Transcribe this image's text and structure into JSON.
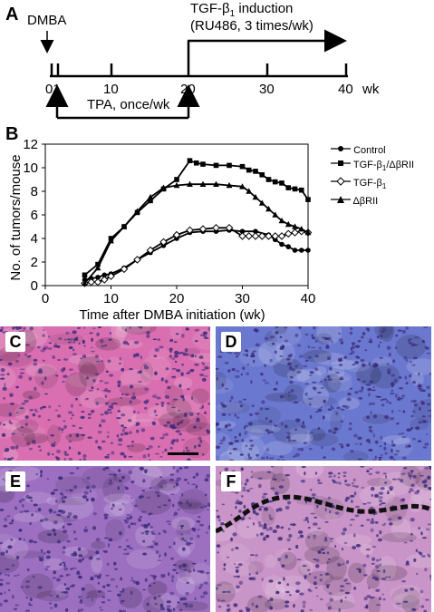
{
  "panels": {
    "A": "A",
    "B": "B",
    "C": "C",
    "D": "D",
    "E": "E",
    "F": "F"
  },
  "timeline": {
    "dmba_label": "DMBA",
    "tgf_label_prefix": "TGF-β",
    "tgf_label_sub": "1",
    "tgf_label_suffix": " induction",
    "tgf_detail": "(RU486, 3 times/wk)",
    "tpa_label": "TPA, once/wk",
    "ticks": [
      "01",
      "10",
      "20",
      "30",
      "40"
    ],
    "unit": "wk"
  },
  "chart_data": {
    "type": "line",
    "title": "",
    "xlabel": "Time after DMBA initiation (wk)",
    "ylabel": "No. of tumors/mouse",
    "xlim": [
      0,
      40
    ],
    "ylim": [
      0,
      12
    ],
    "xticks": [
      0,
      10,
      20,
      30,
      40
    ],
    "yticks": [
      0,
      2,
      4,
      6,
      8,
      10,
      12
    ],
    "grid": false,
    "legend_position": "right",
    "series": [
      {
        "name": "Control",
        "marker": "circle-filled",
        "x": [
          6,
          7,
          8,
          9,
          10,
          12,
          14,
          16,
          18,
          20,
          22,
          24,
          26,
          28,
          30,
          32,
          34,
          35,
          36,
          37,
          38,
          39,
          40
        ],
        "y": [
          0.5,
          0.6,
          0.7,
          0.9,
          1.0,
          1.5,
          2.2,
          2.8,
          3.4,
          4.0,
          4.5,
          4.6,
          4.6,
          4.7,
          4.6,
          4.6,
          4.3,
          3.9,
          3.5,
          3.3,
          3.0,
          3.0,
          3.0
        ]
      },
      {
        "name": "TGF-β1/ΔβRII",
        "marker": "square-filled",
        "x": [
          6,
          8,
          10,
          12,
          14,
          16,
          18,
          20,
          22,
          23,
          24,
          26,
          28,
          30,
          31,
          32,
          33,
          34,
          35,
          36,
          37,
          38,
          39,
          40
        ],
        "y": [
          0.9,
          1.8,
          4.0,
          5.0,
          6.2,
          7.2,
          8.2,
          9.0,
          10.6,
          10.4,
          10.3,
          10.2,
          10.2,
          10.1,
          9.8,
          9.7,
          9.4,
          9.0,
          8.8,
          8.7,
          8.3,
          8.2,
          8.1,
          7.3
        ]
      },
      {
        "name": "TGF-β1",
        "marker": "diamond-open",
        "x": [
          6,
          7,
          8,
          9,
          10,
          12,
          14,
          16,
          18,
          20,
          22,
          24,
          26,
          28,
          30,
          31,
          32,
          33,
          34,
          35,
          36,
          37,
          38,
          39,
          40
        ],
        "y": [
          0.2,
          0.3,
          0.3,
          0.5,
          0.8,
          1.4,
          2.2,
          3.0,
          3.7,
          4.3,
          4.7,
          4.8,
          4.9,
          4.9,
          4.2,
          4.2,
          4.2,
          4.2,
          4.2,
          4.2,
          4.2,
          4.4,
          4.5,
          4.6,
          4.5
        ]
      },
      {
        "name": "ΔβRII",
        "marker": "triangle-filled",
        "x": [
          6,
          8,
          10,
          12,
          14,
          16,
          18,
          20,
          22,
          24,
          26,
          28,
          30,
          31,
          32,
          33,
          34,
          35,
          36,
          37,
          38,
          39,
          40
        ],
        "y": [
          0.2,
          1.5,
          3.8,
          5.0,
          6.3,
          7.5,
          8.3,
          8.5,
          8.6,
          8.6,
          8.6,
          8.5,
          8.4,
          8.0,
          7.5,
          7.0,
          6.5,
          6.0,
          5.5,
          5.2,
          5.0,
          4.8,
          4.5
        ]
      }
    ]
  },
  "legend": {
    "control": "Control",
    "double": {
      "pre": "TGF-β",
      "sub": "1",
      "post": "/ΔβRII"
    },
    "tgf": {
      "pre": "TGF-β",
      "sub": "1",
      "post": ""
    },
    "dbr": "ΔβRII"
  },
  "colors": {
    "panel_c": "#d96fb0",
    "panel_d": "#6b78cf",
    "panel_e": "#9c6fc1",
    "panel_f": "#c994c7",
    "nuclei": "#3a2a7a"
  }
}
